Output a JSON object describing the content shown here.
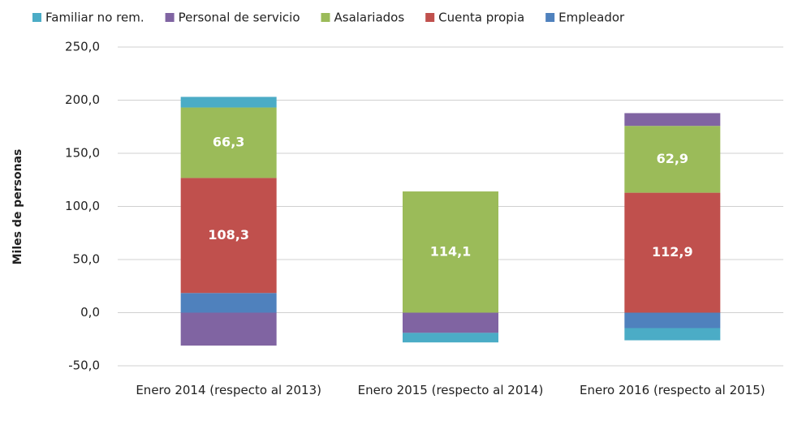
{
  "chart_data": {
    "type": "stacked-bar",
    "y_label": "Miles de personas",
    "categories": [
      "Enero 2014 (respecto al 2013)",
      "Enero 2015 (respecto al 2014)",
      "Enero 2016 (respecto al 2015)"
    ],
    "series": [
      {
        "name": "Familiar no rem.",
        "color": "#4bacc6",
        "values": [
          10,
          -9,
          -11.5
        ],
        "value_labels": [
          null,
          null,
          null
        ]
      },
      {
        "name": "Personal de servicio",
        "color": "#8064a2",
        "values": [
          -31,
          -19,
          12
        ],
        "value_labels": [
          null,
          null,
          null
        ]
      },
      {
        "name": "Asalariados",
        "color": "#9bbb59",
        "values": [
          66.3,
          114.1,
          62.9
        ],
        "value_labels": [
          "66,3",
          "114,1",
          "62,9"
        ]
      },
      {
        "name": "Cuenta propia",
        "color": "#c0504d",
        "values": [
          108.3,
          0,
          112.9
        ],
        "value_labels": [
          "108,3",
          null,
          "112,9"
        ]
      },
      {
        "name": "Empleador",
        "color": "#4f81bd",
        "values": [
          18.5,
          0,
          -14.5
        ],
        "value_labels": [
          null,
          null,
          null
        ]
      }
    ],
    "ylim": [
      -50,
      250
    ],
    "yticks": [
      {
        "value": -50,
        "label": "-50,0"
      },
      {
        "value": 0,
        "label": "0,0"
      },
      {
        "value": 50,
        "label": "50,0"
      },
      {
        "value": 100,
        "label": "100,0"
      },
      {
        "value": 150,
        "label": "150,0"
      },
      {
        "value": 200,
        "label": "200,0"
      },
      {
        "value": 250,
        "label": "250,0"
      }
    ],
    "grid": true
  }
}
